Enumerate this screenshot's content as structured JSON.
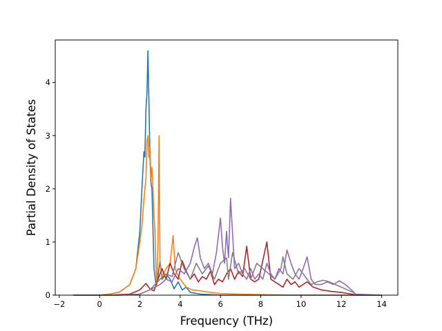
{
  "chart_data": {
    "type": "line",
    "title": "",
    "xlabel": "Frequency (THz)",
    "ylabel": "Partial Density of States",
    "xlim": [
      -2.2,
      14.8
    ],
    "ylim": [
      0,
      4.8
    ],
    "xticks": [
      -2,
      0,
      2,
      4,
      6,
      8,
      10,
      12,
      14
    ],
    "yticks": [
      0,
      1,
      2,
      3,
      4
    ],
    "grid": false,
    "legend": "none",
    "series": [
      {
        "color": "#1f77b4",
        "x": [
          -1.3,
          0.0,
          0.5,
          1.0,
          1.5,
          1.8,
          2.0,
          2.1,
          2.2,
          2.25,
          2.3,
          2.35,
          2.4,
          2.45,
          2.5,
          2.55,
          2.6,
          2.7,
          2.8,
          2.9,
          3.0,
          3.1,
          3.3,
          3.5,
          3.7,
          3.9,
          4.1,
          4.3,
          4.5,
          5.0,
          6.0,
          8.0,
          10.0,
          12.0,
          12.7,
          14.0
        ],
        "y": [
          0,
          0,
          0.02,
          0.06,
          0.2,
          0.5,
          1.2,
          2.0,
          2.7,
          2.6,
          3.5,
          3.8,
          4.6,
          3.6,
          2.6,
          2.1,
          2.0,
          0.5,
          0.2,
          0.35,
          0.65,
          0.3,
          0.4,
          0.3,
          0.12,
          0.25,
          0.1,
          0.15,
          0.05,
          0.02,
          0.0,
          0.0,
          0.0,
          0.0,
          0.0,
          0.0
        ]
      },
      {
        "color": "#ff7f0e",
        "x": [
          -1.3,
          0.0,
          0.5,
          1.0,
          1.5,
          1.8,
          2.0,
          2.1,
          2.2,
          2.3,
          2.35,
          2.4,
          2.45,
          2.5,
          2.55,
          2.6,
          2.65,
          2.7,
          2.75,
          2.8,
          2.85,
          2.9,
          2.95,
          3.0,
          3.1,
          3.3,
          3.5,
          3.65,
          3.75,
          3.85,
          4.0,
          4.3,
          4.6,
          5.0,
          5.5,
          6.0,
          7.0,
          8.0,
          10.0,
          12.0,
          12.7,
          14.0
        ],
        "y": [
          0,
          0,
          0.02,
          0.06,
          0.2,
          0.5,
          1.0,
          1.3,
          1.8,
          2.2,
          2.9,
          3.0,
          2.6,
          2.8,
          2.2,
          2.4,
          2.0,
          1.5,
          1.2,
          0.5,
          0.2,
          1.0,
          3.0,
          0.6,
          0.35,
          0.5,
          0.6,
          1.12,
          0.5,
          0.4,
          0.3,
          0.15,
          0.1,
          0.08,
          0.05,
          0.03,
          0.02,
          0.01,
          0.0,
          0.0,
          0.0,
          0.0
        ]
      },
      {
        "color": "#b22222",
        "x": [
          -1.3,
          0.5,
          1.5,
          2.0,
          2.3,
          2.5,
          2.7,
          2.9,
          3.1,
          3.3,
          3.5,
          3.7,
          3.9,
          4.1,
          4.3,
          4.5,
          4.7,
          4.9,
          5.1,
          5.3,
          5.5,
          5.7,
          5.9,
          6.1,
          6.3,
          6.5,
          6.7,
          6.9,
          7.1,
          7.3,
          7.5,
          7.7,
          7.9,
          8.1,
          8.3,
          8.5,
          8.7,
          8.9,
          9.1,
          9.3,
          9.5,
          9.7,
          9.9,
          10.1,
          10.3,
          10.6,
          11.0,
          11.5,
          12.0,
          12.5,
          12.7,
          14.0
        ],
        "y": [
          0,
          0,
          0.02,
          0.1,
          0.22,
          0.12,
          0.08,
          0.3,
          0.5,
          0.3,
          0.6,
          0.4,
          0.3,
          0.65,
          0.45,
          0.3,
          0.4,
          0.25,
          0.35,
          0.3,
          0.45,
          0.2,
          0.3,
          0.25,
          0.4,
          0.5,
          0.3,
          0.45,
          0.35,
          0.92,
          0.3,
          0.25,
          0.3,
          0.65,
          1.0,
          0.3,
          0.25,
          0.2,
          0.15,
          0.3,
          0.2,
          0.25,
          0.15,
          0.2,
          0.25,
          0.15,
          0.1,
          0.07,
          0.05,
          0.02,
          0.0,
          0.0
        ]
      },
      {
        "color": "#9467bd",
        "x": [
          -1.3,
          1.0,
          2.0,
          2.5,
          3.0,
          3.3,
          3.6,
          3.9,
          4.2,
          4.5,
          4.7,
          4.85,
          5.0,
          5.2,
          5.4,
          5.6,
          5.8,
          6.0,
          6.1,
          6.2,
          6.3,
          6.4,
          6.5,
          6.7,
          6.9,
          7.1,
          7.3,
          7.5,
          7.7,
          7.9,
          8.1,
          8.3,
          8.5,
          8.7,
          8.9,
          9.1,
          9.3,
          9.5,
          9.7,
          9.9,
          10.1,
          10.3,
          10.5,
          10.7,
          11.0,
          11.3,
          11.6,
          11.9,
          12.2,
          12.5,
          12.7,
          14.0
        ],
        "y": [
          0,
          0,
          0.02,
          0.1,
          0.2,
          0.3,
          0.25,
          0.5,
          0.4,
          0.6,
          0.9,
          1.08,
          0.7,
          0.5,
          0.6,
          0.4,
          0.8,
          1.45,
          0.9,
          0.6,
          1.2,
          0.7,
          1.82,
          0.5,
          0.6,
          0.4,
          0.3,
          0.5,
          0.3,
          0.4,
          0.3,
          0.6,
          0.4,
          0.3,
          0.5,
          0.4,
          0.85,
          0.6,
          0.4,
          0.3,
          0.5,
          0.72,
          0.3,
          0.2,
          0.2,
          0.25,
          0.2,
          0.27,
          0.2,
          0.1,
          0.02,
          0.0
        ]
      },
      {
        "color": "#7f7f7f",
        "x": [
          -1.3,
          1.0,
          2.0,
          2.5,
          3.0,
          3.3,
          3.6,
          3.9,
          4.2,
          4.5,
          4.8,
          5.1,
          5.4,
          5.7,
          6.0,
          6.3,
          6.4,
          6.6,
          6.9,
          7.2,
          7.5,
          7.8,
          8.1,
          8.4,
          8.7,
          9.0,
          9.1,
          9.3,
          9.6,
          9.9,
          10.2,
          10.5,
          10.8,
          11.1,
          11.4,
          11.7,
          12.0,
          12.3,
          12.6,
          12.7,
          14.0
        ],
        "y": [
          0,
          0,
          0.02,
          0.1,
          0.3,
          0.4,
          0.35,
          0.8,
          0.5,
          0.3,
          0.6,
          0.4,
          0.55,
          0.3,
          0.6,
          0.7,
          0.3,
          0.8,
          0.4,
          0.5,
          0.3,
          0.6,
          0.5,
          0.4,
          0.3,
          0.5,
          0.72,
          0.4,
          0.3,
          0.5,
          0.35,
          0.2,
          0.25,
          0.28,
          0.25,
          0.2,
          0.15,
          0.1,
          0.05,
          0.0,
          0.0
        ]
      }
    ]
  }
}
